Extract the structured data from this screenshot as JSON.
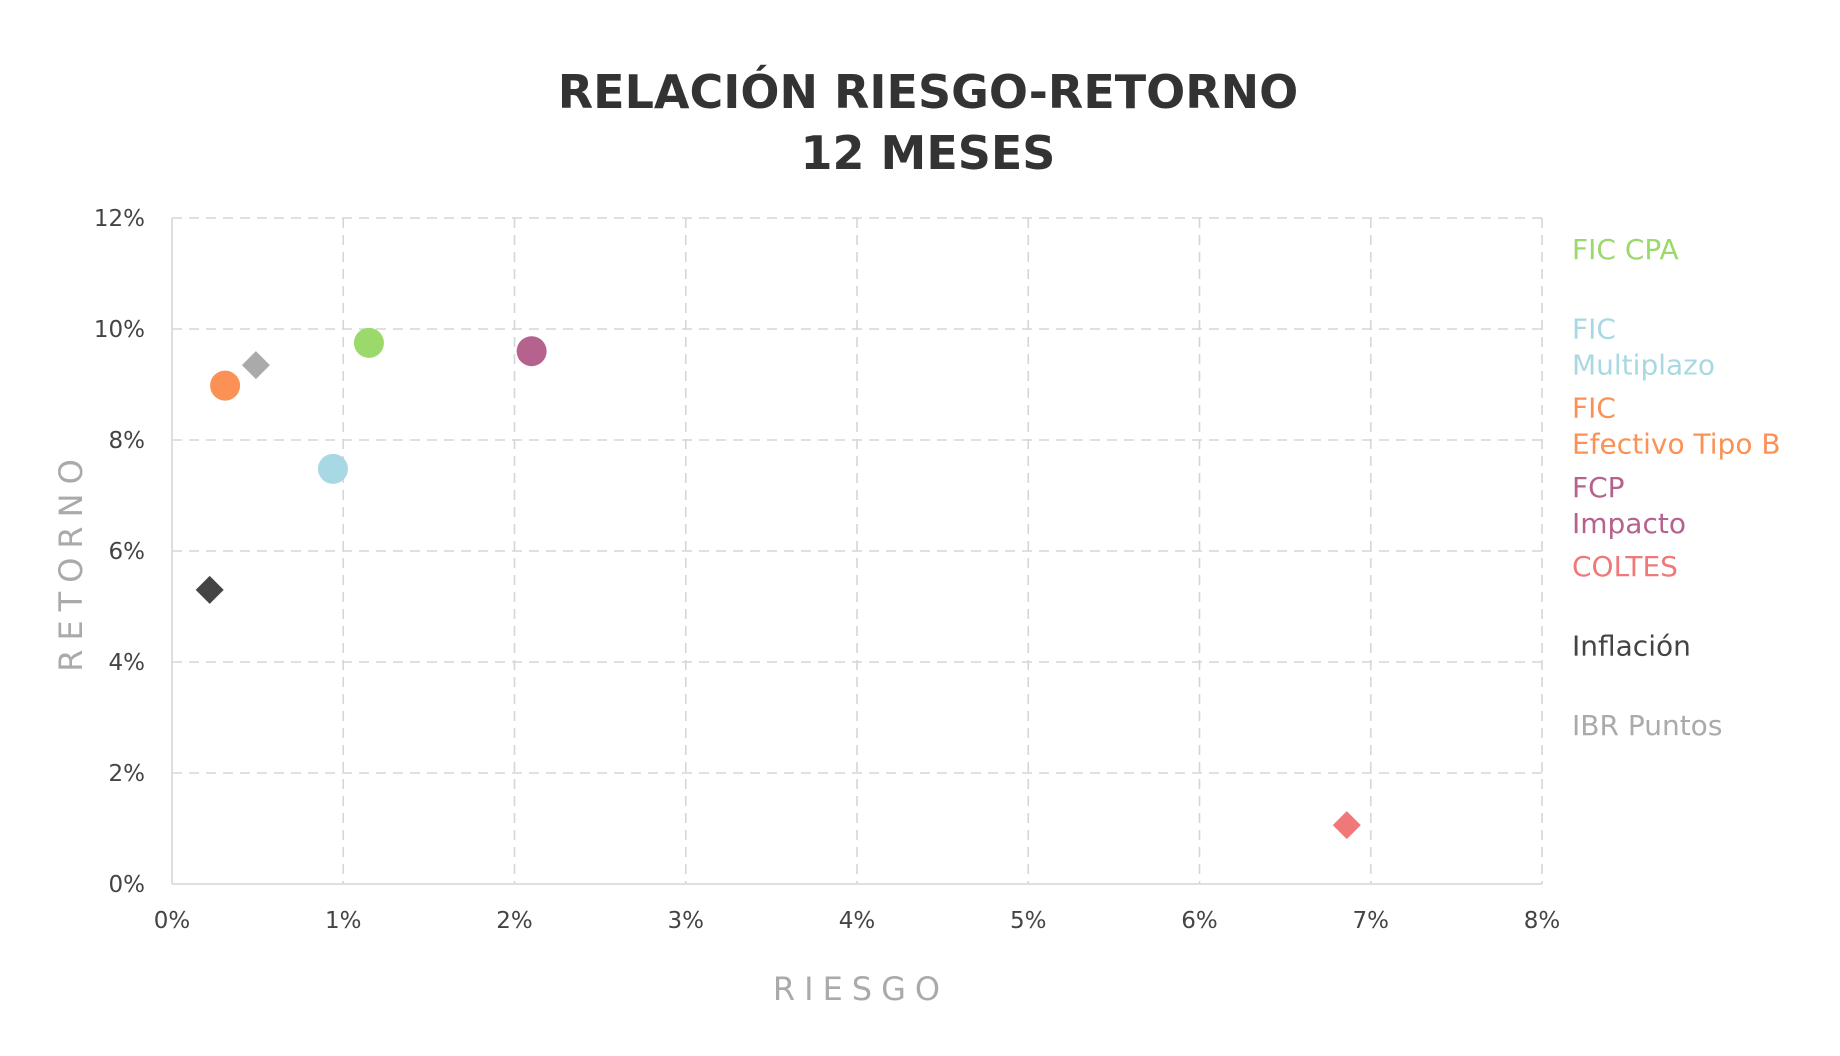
{
  "chart_data": {
    "type": "scatter",
    "title": [
      "RELACIÓN RIESGO-RETORNO",
      "12 MESES"
    ],
    "xlabel": "RIESGO",
    "ylabel": "RETORNO",
    "xlim": [
      0,
      8
    ],
    "ylim": [
      0,
      12
    ],
    "xticks": [
      0,
      1,
      2,
      3,
      4,
      5,
      6,
      7,
      8
    ],
    "yticks": [
      0,
      2,
      4,
      6,
      8,
      10,
      12
    ],
    "xtick_labels": [
      "0%",
      "1%",
      "2%",
      "3%",
      "4%",
      "5%",
      "6%",
      "7%",
      "8%"
    ],
    "ytick_labels": [
      "0%",
      "2%",
      "4%",
      "6%",
      "8%",
      "10%",
      "12%"
    ],
    "grid": true,
    "legend_position": "right",
    "series": [
      {
        "name": "FIC CPA",
        "legend_lines": [
          "FIC CPA"
        ],
        "color": "#9bd96b",
        "marker": "circle",
        "x": 1.15,
        "y": 9.75
      },
      {
        "name": "FIC Multiplazo",
        "legend_lines": [
          "FIC",
          "Multiplazo"
        ],
        "color": "#a8d8e4",
        "marker": "circle",
        "x": 0.94,
        "y": 7.48
      },
      {
        "name": "FIC Efectivo Tipo B",
        "legend_lines": [
          "FIC",
          "Efectivo Tipo B"
        ],
        "color": "#fb9155",
        "marker": "circle",
        "x": 0.31,
        "y": 8.98
      },
      {
        "name": "FCP Impacto",
        "legend_lines": [
          "FCP",
          "Impacto"
        ],
        "color": "#b5628f",
        "marker": "circle",
        "x": 2.1,
        "y": 9.6
      },
      {
        "name": "COLTES",
        "legend_lines": [
          "COLTES"
        ],
        "color": "#f07878",
        "marker": "diamond",
        "x": 6.86,
        "y": 1.06
      },
      {
        "name": "Inflación",
        "legend_lines": [
          "Inflación"
        ],
        "color": "#444444",
        "marker": "diamond",
        "x": 0.22,
        "y": 5.3
      },
      {
        "name": "IBR Puntos",
        "legend_lines": [
          "IBR Puntos"
        ],
        "color": "#aaaaaa",
        "marker": "diamond",
        "x": 0.49,
        "y": 9.35
      }
    ]
  }
}
